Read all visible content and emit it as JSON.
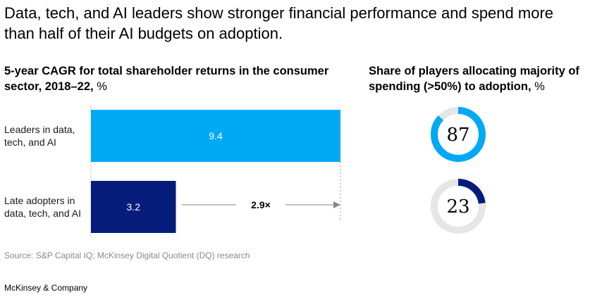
{
  "headline": "Data, tech, and AI leaders show stronger financial performance and spend more than half of their AI budgets on adoption.",
  "source": "Source: S&P Capital IQ; McKinsey Digital Quotient (DQ) research",
  "brand": "McKinsey & Company",
  "colors": {
    "leaders": "#00a9f4",
    "late_adopters": "#051c7a",
    "donut_track": "#e6e6e6",
    "arrow": "#888888"
  },
  "chart_data": [
    {
      "type": "bar",
      "title": "5-year CAGR for total shareholder returns in the consumer sector, 2018–22,",
      "unit": "%",
      "orientation": "horizontal",
      "categories": [
        "Leaders in data, tech, and AI",
        "Late adopters in data, tech, and AI"
      ],
      "category_lines": [
        [
          "Leaders in data,",
          "tech, and AI"
        ],
        [
          "Late adopters in",
          "data, tech, and AI"
        ]
      ],
      "values": [
        9.4,
        3.2
      ],
      "value_labels": [
        "9.4",
        "3.2"
      ],
      "annotation": "2.9×",
      "xlim": [
        0,
        9.4
      ],
      "grid": false,
      "legend": "none"
    },
    {
      "type": "pie",
      "style": "donut",
      "title": "Share of players allocating majority of spending (>50%) to adoption,",
      "unit": "%",
      "items": [
        {
          "category": "Leaders in data, tech, and AI",
          "value": 87,
          "label": "87"
        },
        {
          "category": "Late adopters in data, tech, and AI",
          "value": 23,
          "label": "23"
        }
      ]
    }
  ]
}
